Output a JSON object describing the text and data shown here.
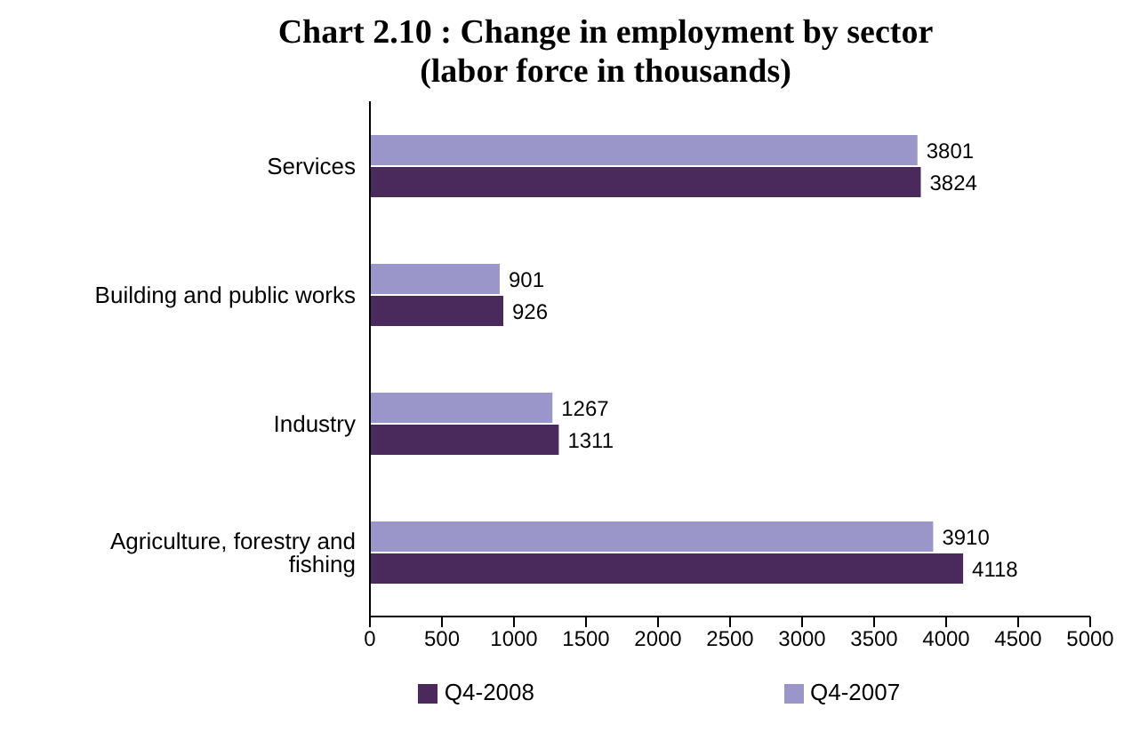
{
  "chart_data": {
    "type": "bar",
    "orientation": "horizontal",
    "title": "Chart 2.10 : Change in employment by sector\n(labor force in thousands)",
    "categories": [
      "Services",
      "Building and public works",
      "Industry",
      "Agriculture, forestry and fishing"
    ],
    "series": [
      {
        "name": "Q4-2008",
        "color": "#4a2a5c",
        "values": [
          3824,
          926,
          1311,
          4118
        ]
      },
      {
        "name": "Q4-2007",
        "color": "#9b96c9",
        "values": [
          3801,
          901,
          1267,
          3910
        ]
      }
    ],
    "xlim": [
      0,
      5000
    ],
    "xticks": [
      0,
      500,
      1000,
      1500,
      2000,
      2500,
      3000,
      3500,
      4000,
      4500,
      5000
    ],
    "data_labels": true,
    "grid": false,
    "legend": "bottom"
  }
}
